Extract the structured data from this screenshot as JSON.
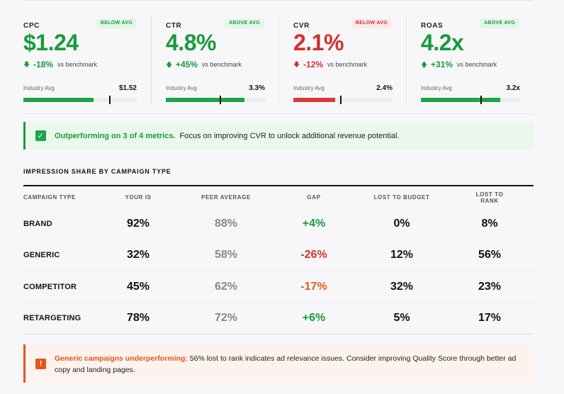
{
  "metrics": [
    {
      "label": "CPC",
      "badge": "BELOW AVG",
      "value": "$1.24",
      "change": "-18%",
      "change_text": "vs benchmark",
      "industry_label": "Industry Avg",
      "industry_value": "$1.52",
      "status": "good",
      "direction": "down",
      "fill_fraction": 0.62,
      "benchmark_fraction": 0.76
    },
    {
      "label": "CTR",
      "badge": "ABOVE AVG",
      "value": "4.8%",
      "change": "+45%",
      "change_text": "vs benchmark",
      "industry_label": "Industry Avg",
      "industry_value": "3.3%",
      "status": "good",
      "direction": "up",
      "fill_fraction": 0.79,
      "benchmark_fraction": 0.55
    },
    {
      "label": "CVR",
      "badge": "BELOW AVG",
      "value": "2.1%",
      "change": "-12%",
      "change_text": "vs benchmark",
      "industry_label": "Industry Avg",
      "industry_value": "2.4%",
      "status": "bad",
      "direction": "down",
      "fill_fraction": 0.42,
      "benchmark_fraction": 0.48
    },
    {
      "label": "ROAS",
      "badge": "ABOVE AVG",
      "value": "4.2x",
      "change": "+31%",
      "change_text": "vs benchmark",
      "industry_label": "Industry Avg",
      "industry_value": "3.2x",
      "status": "good",
      "direction": "up",
      "fill_fraction": 0.8,
      "benchmark_fraction": 0.61
    }
  ],
  "summary_banner": {
    "strong": "Outperforming on 3 of 4 metrics.",
    "text": "Focus on improving CVR to unlock additional revenue potential.",
    "icon": "check-icon"
  },
  "impression_share": {
    "title": "IMPRESSION SHARE BY CAMPAIGN TYPE",
    "columns": [
      "CAMPAIGN TYPE",
      "YOUR IS",
      "PEER AVERAGE",
      "GAP",
      "LOST TO BUDGET",
      "LOST TO RANK"
    ],
    "rows": [
      {
        "type": "BRAND",
        "your_is": "92%",
        "peer_avg": "88%",
        "gap": "+4%",
        "gap_tone": "pos",
        "lost_budget": "0%",
        "lost_rank": "8%"
      },
      {
        "type": "GENERIC",
        "your_is": "32%",
        "peer_avg": "58%",
        "gap": "-26%",
        "gap_tone": "neg",
        "lost_budget": "12%",
        "lost_rank": "56%"
      },
      {
        "type": "COMPETITOR",
        "your_is": "45%",
        "peer_avg": "62%",
        "gap": "-17%",
        "gap_tone": "negw",
        "lost_budget": "32%",
        "lost_rank": "23%"
      },
      {
        "type": "RETARGETING",
        "your_is": "78%",
        "peer_avg": "72%",
        "gap": "+6%",
        "gap_tone": "pos",
        "lost_budget": "5%",
        "lost_rank": "17%"
      }
    ]
  },
  "warning_banner": {
    "strong": "Generic campaigns underperforming:",
    "text": "56% lost to rank indicates ad relevance issues. Consider improving Quality Score through better ad copy and landing pages.",
    "icon": "exclamation-icon"
  }
}
